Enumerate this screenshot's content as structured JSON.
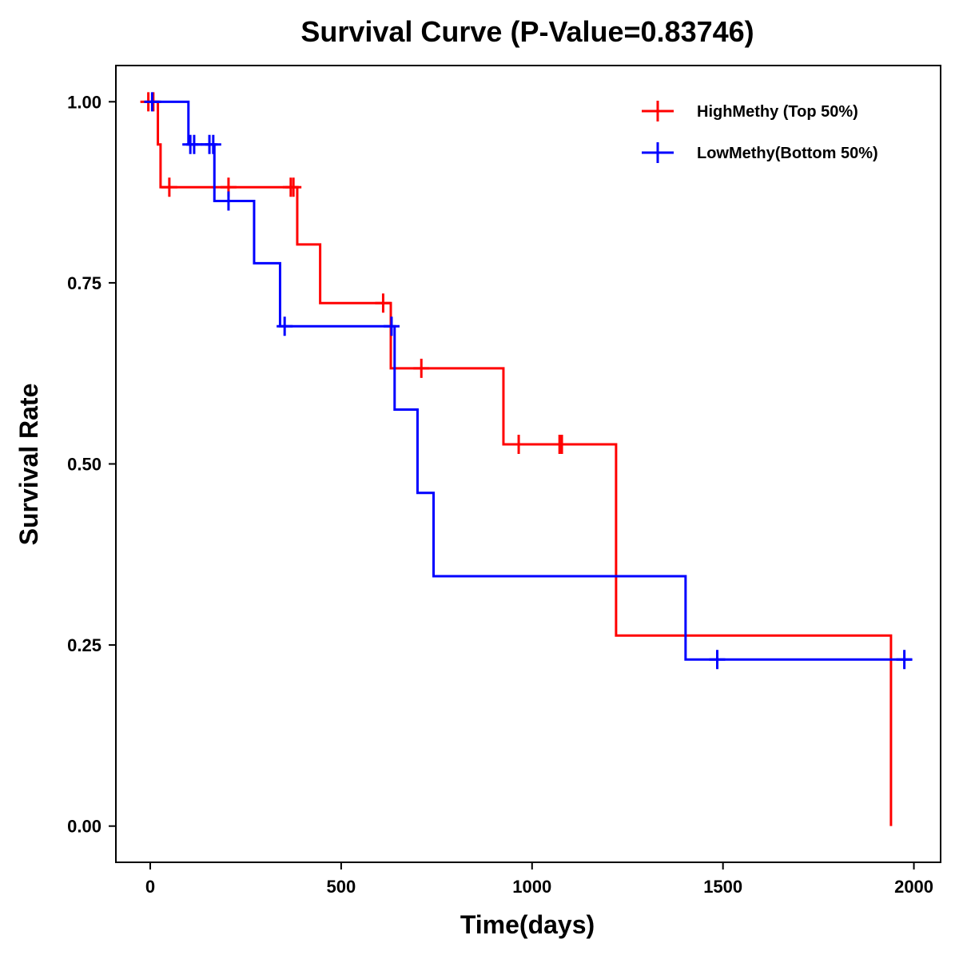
{
  "chart_data": {
    "type": "line",
    "subtype": "kaplan-meier-step",
    "title": "Survival Curve (P-Value=0.83746)",
    "xlabel": "Time(days)",
    "ylabel": "Survival Rate",
    "xlim": [
      -90,
      2070
    ],
    "ylim": [
      -0.05,
      1.05
    ],
    "x_ticks": [
      0,
      500,
      1000,
      1500,
      2000
    ],
    "x_tick_labels": [
      "0",
      "500",
      "1000",
      "1500",
      "2000"
    ],
    "y_ticks": [
      0.0,
      0.25,
      0.5,
      0.75,
      1.0
    ],
    "y_tick_labels": [
      "0.00",
      "0.25",
      "0.50",
      "0.75",
      "1.00"
    ],
    "grid": false,
    "legend_position": "top-right",
    "series": [
      {
        "name": "HighMethy (Top 50%)",
        "color": "#ff0000",
        "steps": [
          {
            "t": 0,
            "s": 1.0
          },
          {
            "t": 20,
            "s": 0.941
          },
          {
            "t": 27,
            "s": 0.882
          },
          {
            "t": 385,
            "s": 0.803
          },
          {
            "t": 445,
            "s": 0.722
          },
          {
            "t": 630,
            "s": 0.632
          },
          {
            "t": 925,
            "s": 0.527
          },
          {
            "t": 1220,
            "s": 0.263
          },
          {
            "t": 1940,
            "s": 0.0
          }
        ],
        "end_time": 1940,
        "censored": [
          {
            "t": -5,
            "s": 1.0
          },
          {
            "t": 8,
            "s": 1.0
          },
          {
            "t": 50,
            "s": 0.882
          },
          {
            "t": 205,
            "s": 0.882
          },
          {
            "t": 368,
            "s": 0.882
          },
          {
            "t": 375,
            "s": 0.882
          },
          {
            "t": 610,
            "s": 0.722
          },
          {
            "t": 710,
            "s": 0.632
          },
          {
            "t": 965,
            "s": 0.527
          },
          {
            "t": 1072,
            "s": 0.527
          },
          {
            "t": 1078,
            "s": 0.527
          }
        ]
      },
      {
        "name": "LowMethy(Bottom 50%)",
        "color": "#0000ff",
        "steps": [
          {
            "t": 0,
            "s": 1.0
          },
          {
            "t": 100,
            "s": 0.941
          },
          {
            "t": 168,
            "s": 0.863
          },
          {
            "t": 272,
            "s": 0.777
          },
          {
            "t": 340,
            "s": 0.69
          },
          {
            "t": 640,
            "s": 0.575
          },
          {
            "t": 700,
            "s": 0.46
          },
          {
            "t": 742,
            "s": 0.345
          },
          {
            "t": 1402,
            "s": 0.23
          }
        ],
        "end_time": 1995,
        "censored": [
          {
            "t": 5,
            "s": 1.0
          },
          {
            "t": 105,
            "s": 0.941
          },
          {
            "t": 115,
            "s": 0.941
          },
          {
            "t": 155,
            "s": 0.941
          },
          {
            "t": 165,
            "s": 0.941
          },
          {
            "t": 205,
            "s": 0.863
          },
          {
            "t": 352,
            "s": 0.69
          },
          {
            "t": 632,
            "s": 0.69
          },
          {
            "t": 1485,
            "s": 0.23
          },
          {
            "t": 1975,
            "s": 0.23
          }
        ]
      }
    ]
  }
}
